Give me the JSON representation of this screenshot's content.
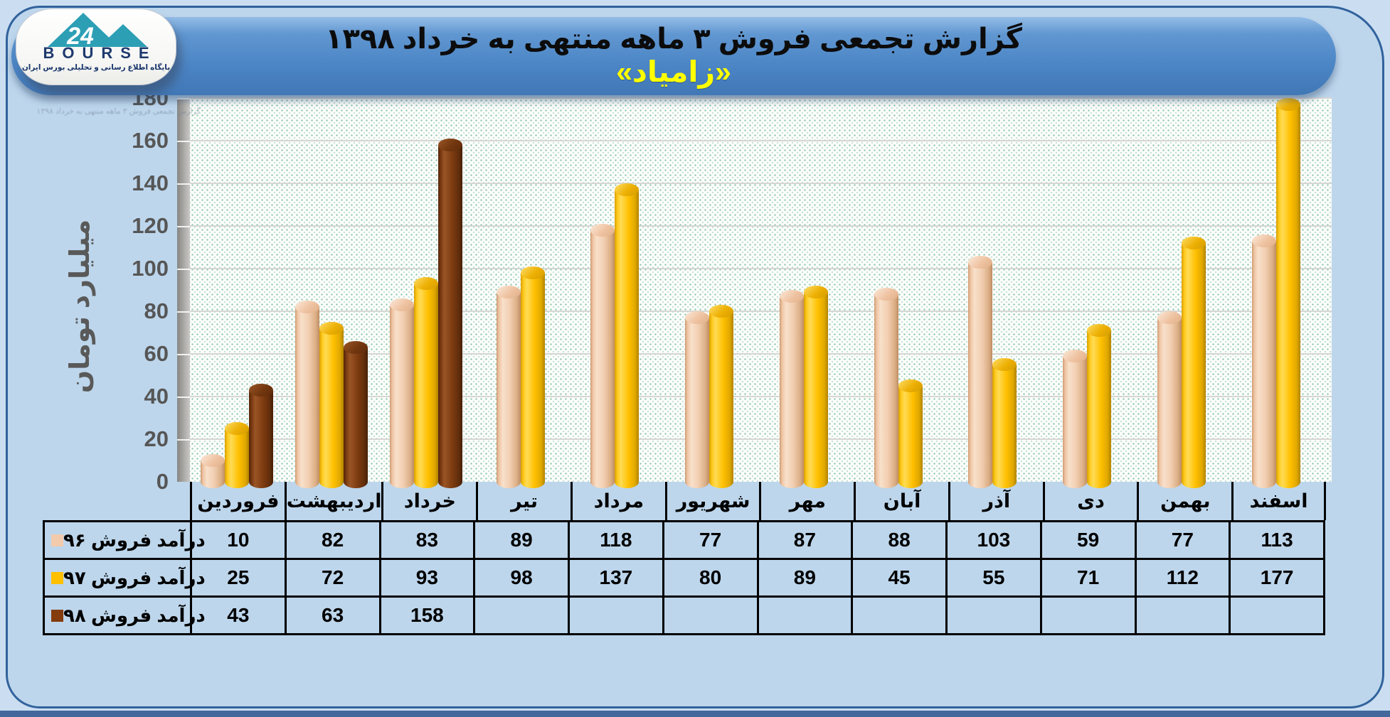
{
  "header": {
    "title": "گزارش تجمعی فروش ۳ ماهه منتهی به خرداد ۱۳۹۸",
    "subtitle": "«زامیاد»"
  },
  "logo": {
    "brand": "BOURSE",
    "number": "24",
    "tagline": "پایگاه اطلاع رسانی و تحلیلی بورس ایران"
  },
  "watermark": {
    "text": "گزارش تجمعی فروش ۳ ماهه منتهی به خرداد ۱۳۹۸"
  },
  "chart_data": {
    "type": "bar",
    "title": "گزارش تجمعی فروش ۳ ماهه منتهی به خرداد ۱۳۹۸ «زامیاد»",
    "ylabel": "میلیارد تومان",
    "xlabel": "",
    "ylim": [
      0,
      180
    ],
    "ytick_step": 20,
    "grid": true,
    "legend_position": "table-left",
    "categories": [
      "فروردین",
      "اردیبهشت",
      "خرداد",
      "تیر",
      "مرداد",
      "شهریور",
      "مهر",
      "آبان",
      "آذر",
      "دی",
      "بهمن",
      "اسفند"
    ],
    "series": [
      {
        "name": "درآمد فروش ۹۶",
        "color": "#F2CBAD",
        "values": [
          10,
          82,
          83,
          89,
          118,
          77,
          87,
          88,
          103,
          59,
          77,
          113
        ]
      },
      {
        "name": "درآمد فروش ۹۷",
        "color": "#FFC000",
        "values": [
          25,
          72,
          93,
          98,
          137,
          80,
          89,
          45,
          55,
          71,
          112,
          177
        ]
      },
      {
        "name": "درآمد فروش ۹۸",
        "color": "#843C0C",
        "values": [
          43,
          63,
          158,
          null,
          null,
          null,
          null,
          null,
          null,
          null,
          null,
          null
        ]
      }
    ]
  },
  "colors": {
    "page_bg": "#CBDEF1",
    "card_bg": "#BDD6EC",
    "card_border": "#31629C",
    "pill_top": "#93BCE7",
    "pill_bottom": "#4177B5",
    "subtitle_yellow": "#FFFF00",
    "dot_green": "#24966E",
    "axis_gray": "#595959",
    "bottom_strip": "#44689C"
  }
}
